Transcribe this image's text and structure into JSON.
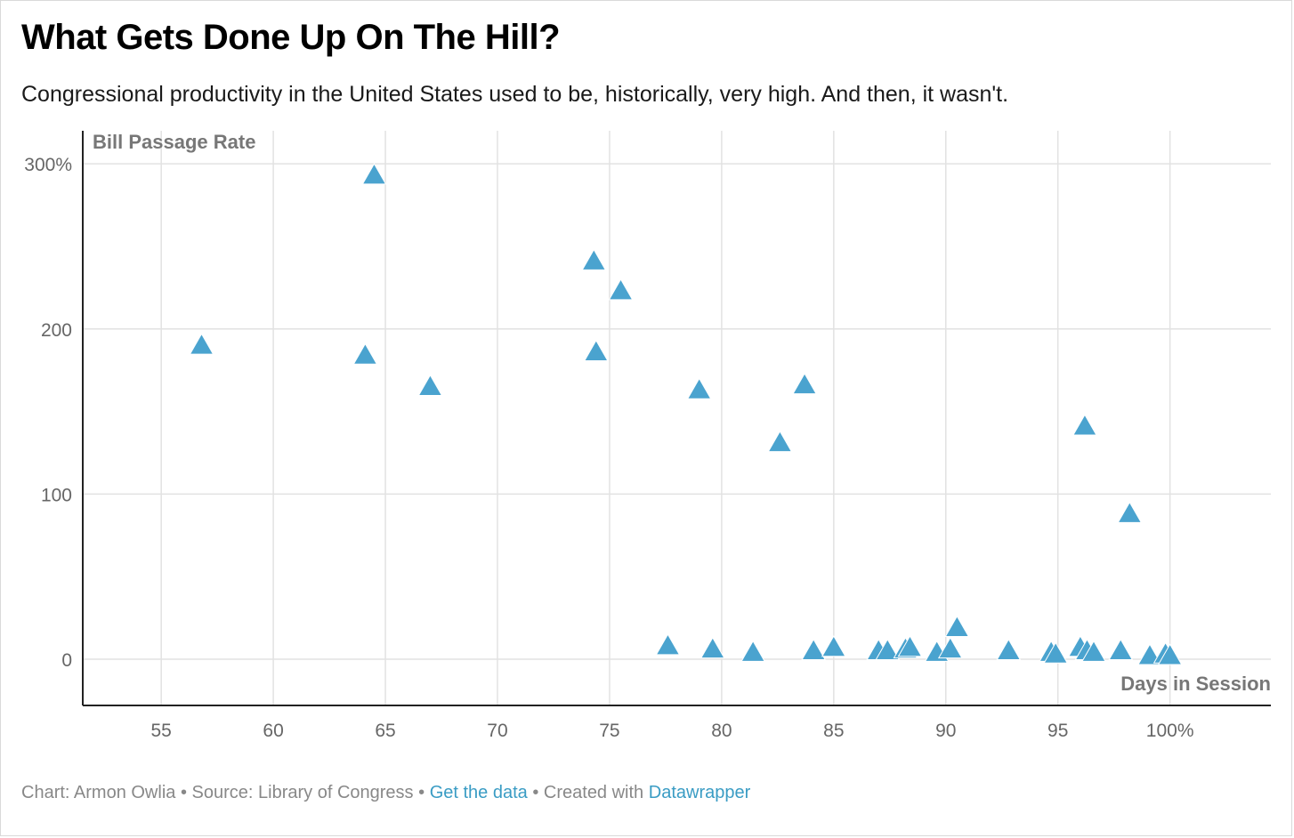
{
  "header": {
    "title": "What Gets Done Up On The Hill?",
    "subtitle": "Congressional productivity in the United States used to be, historically, very high. And then, it wasn't."
  },
  "footer": {
    "credit": "Chart: Armon Owlia",
    "source": "Source: Library of Congress",
    "get_data": "Get the data",
    "created_prefix": "Created with",
    "created_tool": "Datawrapper",
    "separator": "•"
  },
  "colors": {
    "marker": "#4aa3cf",
    "grid": "#e2e2e2",
    "axis": "#222222",
    "link": "#3a9cc4"
  },
  "chart_data": {
    "type": "scatter",
    "marker": "triangle",
    "title": "What Gets Done Up On The Hill?",
    "xlabel": "Days in Session",
    "ylabel": "Bill Passage Rate",
    "xlim": [
      51.5,
      104.5
    ],
    "ylim": [
      -28,
      320
    ],
    "x_ticks": [
      55,
      60,
      65,
      70,
      75,
      80,
      85,
      90,
      95,
      100
    ],
    "x_tick_labels": [
      "55",
      "60",
      "65",
      "70",
      "75",
      "80",
      "85",
      "90",
      "95",
      "100%"
    ],
    "y_ticks": [
      0,
      100,
      200,
      300
    ],
    "y_tick_labels": [
      "0",
      "100",
      "200",
      "300%"
    ],
    "grid": true,
    "points": [
      {
        "x": 56.8,
        "y": 190
      },
      {
        "x": 64.1,
        "y": 184
      },
      {
        "x": 64.5,
        "y": 293
      },
      {
        "x": 67.0,
        "y": 165
      },
      {
        "x": 74.3,
        "y": 241
      },
      {
        "x": 74.4,
        "y": 186
      },
      {
        "x": 75.5,
        "y": 223
      },
      {
        "x": 77.6,
        "y": 8
      },
      {
        "x": 79.0,
        "y": 163
      },
      {
        "x": 79.6,
        "y": 6
      },
      {
        "x": 81.4,
        "y": 4
      },
      {
        "x": 82.6,
        "y": 131
      },
      {
        "x": 83.7,
        "y": 166
      },
      {
        "x": 84.1,
        "y": 5
      },
      {
        "x": 85.0,
        "y": 7
      },
      {
        "x": 87.0,
        "y": 5
      },
      {
        "x": 87.4,
        "y": 5
      },
      {
        "x": 88.2,
        "y": 6
      },
      {
        "x": 88.4,
        "y": 7
      },
      {
        "x": 89.6,
        "y": 4
      },
      {
        "x": 90.2,
        "y": 6
      },
      {
        "x": 90.5,
        "y": 19
      },
      {
        "x": 92.8,
        "y": 5
      },
      {
        "x": 94.7,
        "y": 4
      },
      {
        "x": 94.9,
        "y": 3
      },
      {
        "x": 96.0,
        "y": 7
      },
      {
        "x": 96.2,
        "y": 141
      },
      {
        "x": 96.3,
        "y": 5
      },
      {
        "x": 96.6,
        "y": 4
      },
      {
        "x": 97.8,
        "y": 5
      },
      {
        "x": 98.2,
        "y": 88
      },
      {
        "x": 99.1,
        "y": 2
      },
      {
        "x": 99.8,
        "y": 3
      },
      {
        "x": 100.0,
        "y": 2
      }
    ]
  }
}
